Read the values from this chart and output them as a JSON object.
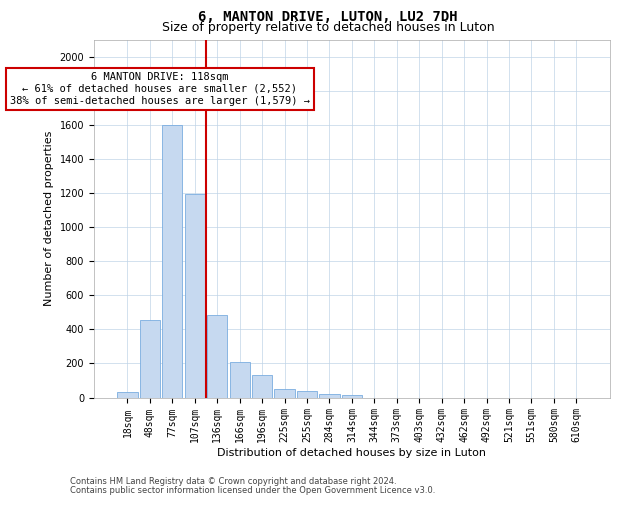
{
  "title": "6, MANTON DRIVE, LUTON, LU2 7DH",
  "subtitle": "Size of property relative to detached houses in Luton",
  "xlabel": "Distribution of detached houses by size in Luton",
  "ylabel": "Number of detached properties",
  "bar_labels": [
    "18sqm",
    "48sqm",
    "77sqm",
    "107sqm",
    "136sqm",
    "166sqm",
    "196sqm",
    "225sqm",
    "255sqm",
    "284sqm",
    "314sqm",
    "344sqm",
    "373sqm",
    "403sqm",
    "432sqm",
    "462sqm",
    "492sqm",
    "521sqm",
    "551sqm",
    "580sqm",
    "610sqm"
  ],
  "bar_values": [
    35,
    455,
    1600,
    1195,
    485,
    210,
    130,
    50,
    40,
    22,
    12,
    0,
    0,
    0,
    0,
    0,
    0,
    0,
    0,
    0,
    0
  ],
  "bar_color": "#c6d9f0",
  "bar_edgecolor": "#7aade0",
  "vline_color": "#cc0000",
  "vline_x": 3.5,
  "annotation_text": "6 MANTON DRIVE: 118sqm\n← 61% of detached houses are smaller (2,552)\n38% of semi-detached houses are larger (1,579) →",
  "annotation_box_facecolor": "#ffffff",
  "annotation_box_edgecolor": "#cc0000",
  "ylim": [
    0,
    2100
  ],
  "yticks": [
    0,
    200,
    400,
    600,
    800,
    1000,
    1200,
    1400,
    1600,
    1800,
    2000
  ],
  "footnote_line1": "Contains HM Land Registry data © Crown copyright and database right 2024.",
  "footnote_line2": "Contains public sector information licensed under the Open Government Licence v3.0.",
  "title_fontsize": 10,
  "subtitle_fontsize": 9,
  "axis_label_fontsize": 8,
  "tick_fontsize": 7,
  "annotation_fontsize": 7.5,
  "footnote_fontsize": 6
}
